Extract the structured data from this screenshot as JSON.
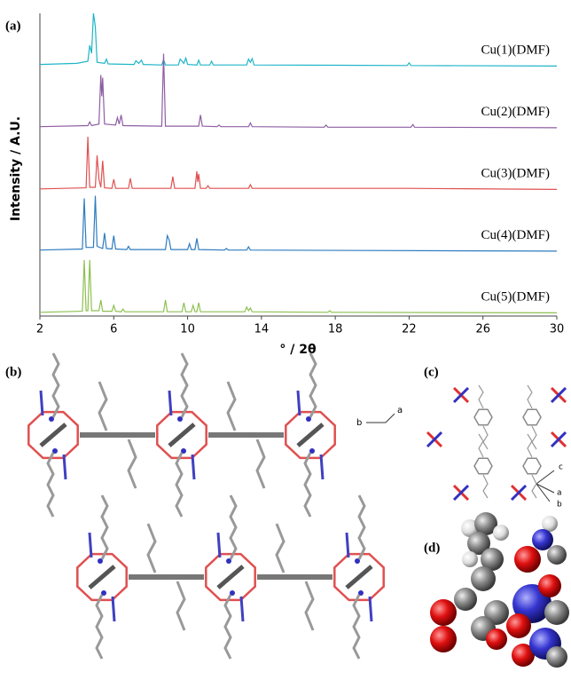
{
  "chart_data": {
    "type": "line",
    "ylabel": "Intensity / A.U.",
    "xlabel": "° / 2θ",
    "xlim": [
      2,
      30
    ],
    "xticks": [
      2,
      6,
      10,
      14,
      18,
      22,
      26,
      30
    ],
    "series": [
      {
        "name": "Cu(1)(DMF)",
        "color": "#1fb5c8",
        "x": [
          2,
          4,
          4.6,
          4.7,
          4.8,
          4.9,
          5.0,
          5.1,
          5.5,
          5.6,
          5.7,
          7.1,
          7.2,
          7.35,
          7.5,
          7.6,
          8.6,
          8.7,
          8.8,
          9.5,
          9.6,
          9.8,
          9.9,
          10.0,
          10.5,
          10.6,
          10.7,
          11.2,
          11.3,
          11.4,
          13.2,
          13.3,
          13.4,
          13.5,
          13.6,
          21.9,
          22.0,
          22.1,
          30
        ],
        "values": [
          4,
          6,
          10,
          40,
          25,
          100,
          75,
          8,
          6,
          14,
          5,
          4,
          11,
          6,
          12,
          4,
          3,
          13,
          3,
          3,
          14,
          6,
          16,
          4,
          3,
          12,
          3,
          3,
          10,
          3,
          3,
          14,
          8,
          15,
          3,
          2,
          7,
          2,
          1
        ]
      },
      {
        "name": "Cu(2)(DMF)",
        "color": "#8e5ea2",
        "x": [
          2,
          4.6,
          4.7,
          4.8,
          5.2,
          5.3,
          5.35,
          5.4,
          5.5,
          6.1,
          6.2,
          6.3,
          6.4,
          6.5,
          8.6,
          8.7,
          8.8,
          10.6,
          10.7,
          10.8,
          11.6,
          11.7,
          11.8,
          13.3,
          13.4,
          13.5,
          17.4,
          17.5,
          17.6,
          22.1,
          22.2,
          22.3,
          30
        ],
        "values": [
          3,
          5,
          12,
          5,
          8,
          100,
          60,
          95,
          8,
          6,
          20,
          8,
          25,
          5,
          4,
          140,
          4,
          4,
          25,
          4,
          3,
          6,
          3,
          3,
          10,
          3,
          2,
          6,
          2,
          2,
          7,
          2,
          1
        ]
      },
      {
        "name": "Cu(3)(DMF)",
        "color": "#e05050",
        "x": [
          2,
          4.5,
          4.6,
          4.7,
          5.0,
          5.1,
          5.2,
          5.3,
          5.4,
          5.5,
          5.9,
          6.0,
          6.1,
          6.8,
          6.9,
          7.0,
          9.1,
          9.2,
          9.3,
          10.4,
          10.5,
          10.55,
          10.6,
          10.7,
          11.0,
          11.1,
          11.2,
          13.3,
          13.4,
          13.5,
          22,
          30
        ],
        "values": [
          2,
          4,
          100,
          5,
          5,
          65,
          20,
          5,
          55,
          4,
          3,
          20,
          3,
          3,
          22,
          3,
          3,
          25,
          3,
          3,
          35,
          15,
          30,
          3,
          3,
          8,
          3,
          3,
          10,
          3,
          3,
          1
        ]
      },
      {
        "name": "Cu(4)(DMF)",
        "color": "#2e7cc0",
        "x": [
          2,
          4.3,
          4.4,
          4.5,
          4.9,
          5.0,
          5.1,
          5.4,
          5.5,
          5.6,
          5.9,
          6.0,
          6.1,
          6.7,
          6.8,
          6.9,
          8.8,
          8.9,
          9.0,
          9.1,
          10.0,
          10.1,
          10.2,
          10.4,
          10.5,
          10.6,
          12.0,
          12.1,
          12.2,
          13.2,
          13.3,
          13.4,
          30
        ],
        "values": [
          3,
          5,
          100,
          8,
          8,
          105,
          10,
          6,
          35,
          6,
          5,
          30,
          5,
          4,
          10,
          4,
          4,
          30,
          22,
          4,
          4,
          15,
          4,
          4,
          25,
          4,
          3,
          6,
          3,
          3,
          9,
          3,
          1
        ]
      },
      {
        "name": "Cu(5)(DMF)",
        "color": "#8dc050",
        "x": [
          2,
          4.3,
          4.4,
          4.5,
          4.6,
          4.7,
          4.8,
          5.2,
          5.3,
          5.4,
          5.9,
          6.0,
          6.1,
          6.4,
          6.5,
          6.6,
          8.7,
          8.8,
          8.9,
          9.7,
          9.8,
          9.9,
          10.2,
          10.3,
          10.4,
          10.5,
          10.6,
          10.7,
          13.1,
          13.2,
          13.3,
          13.4,
          13.5,
          17.6,
          17.7,
          17.8,
          30
        ],
        "values": [
          2,
          4,
          100,
          5,
          5,
          100,
          5,
          5,
          25,
          4,
          4,
          15,
          4,
          3,
          8,
          3,
          3,
          25,
          3,
          3,
          20,
          3,
          3,
          15,
          3,
          3,
          20,
          3,
          3,
          12,
          5,
          10,
          3,
          2,
          5,
          2,
          1
        ]
      }
    ]
  },
  "figure": {
    "panel_labels": [
      "(a)",
      "(b)",
      "(c)",
      "(d)"
    ],
    "axes_b": [
      "a",
      "b"
    ],
    "axes_c": [
      "c",
      "a",
      "b"
    ]
  }
}
